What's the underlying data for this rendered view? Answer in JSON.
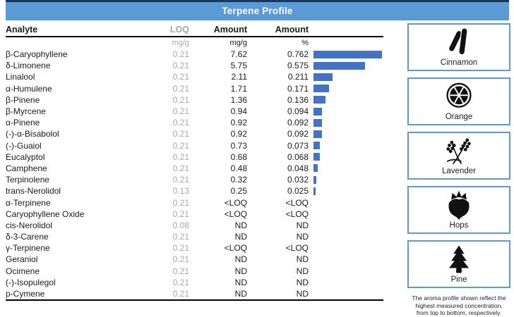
{
  "header": {
    "title": "Terpene Profile"
  },
  "table": {
    "columns": {
      "analyte": "Analyte",
      "loq": "LOQ",
      "amount_mg": "Amount",
      "amount_pct": "Amount"
    },
    "units": {
      "loq": "mg/g",
      "amount_mg": "mg/g",
      "amount_pct": "%"
    },
    "rows": [
      {
        "analyte": "β-Caryophyllene",
        "loq": "0.21",
        "amount_mg": "7.62",
        "amount_pct": "0.762",
        "bar": 7.62
      },
      {
        "analyte": "δ-Limonene",
        "loq": "0.21",
        "amount_mg": "5.75",
        "amount_pct": "0.575",
        "bar": 5.75
      },
      {
        "analyte": "Linalool",
        "loq": "0.21",
        "amount_mg": "2.11",
        "amount_pct": "0.211",
        "bar": 2.11
      },
      {
        "analyte": "α-Humulene",
        "loq": "0.21",
        "amount_mg": "1.71",
        "amount_pct": "0.171",
        "bar": 1.71
      },
      {
        "analyte": "β-Pinene",
        "loq": "0.21",
        "amount_mg": "1.36",
        "amount_pct": "0.136",
        "bar": 1.36
      },
      {
        "analyte": "β-Myrcene",
        "loq": "0.21",
        "amount_mg": "0.94",
        "amount_pct": "0.094",
        "bar": 0.94
      },
      {
        "analyte": "α-Pinene",
        "loq": "0.21",
        "amount_mg": "0.92",
        "amount_pct": "0.092",
        "bar": 0.92
      },
      {
        "analyte": "(-)-α-Bisabolol",
        "loq": "0.21",
        "amount_mg": "0.92",
        "amount_pct": "0.092",
        "bar": 0.92
      },
      {
        "analyte": "(-)-Guaiol",
        "loq": "0.21",
        "amount_mg": "0.73",
        "amount_pct": "0.073",
        "bar": 0.73
      },
      {
        "analyte": "Eucalyptol",
        "loq": "0.21",
        "amount_mg": "0.68",
        "amount_pct": "0.068",
        "bar": 0.68
      },
      {
        "analyte": "Camphene",
        "loq": "0.21",
        "amount_mg": "0.48",
        "amount_pct": "0.048",
        "bar": 0.48
      },
      {
        "analyte": "Terpinolene",
        "loq": "0.21",
        "amount_mg": "0.32",
        "amount_pct": "0.032",
        "bar": 0.32
      },
      {
        "analyte": "trans-Nerolidol",
        "loq": "0.13",
        "amount_mg": "0.25",
        "amount_pct": "0.025",
        "bar": 0.25
      },
      {
        "analyte": "α-Terpinene",
        "loq": "0.21",
        "amount_mg": "<LOQ",
        "amount_pct": "<LOQ",
        "bar": 0
      },
      {
        "analyte": "Caryophyllene Oxide",
        "loq": "0.21",
        "amount_mg": "<LOQ",
        "amount_pct": "<LOQ",
        "bar": 0
      },
      {
        "analyte": "cis-Nerolidol",
        "loq": "0.08",
        "amount_mg": "ND",
        "amount_pct": "ND",
        "bar": 0
      },
      {
        "analyte": "δ-3-Carene",
        "loq": "0.21",
        "amount_mg": "ND",
        "amount_pct": "ND",
        "bar": 0
      },
      {
        "analyte": "γ-Terpinene",
        "loq": "0.21",
        "amount_mg": "<LOQ",
        "amount_pct": "<LOQ",
        "bar": 0
      },
      {
        "analyte": "Geraniol",
        "loq": "0.21",
        "amount_mg": "ND",
        "amount_pct": "ND",
        "bar": 0
      },
      {
        "analyte": "Ocimene",
        "loq": "0.21",
        "amount_mg": "ND",
        "amount_pct": "ND",
        "bar": 0
      },
      {
        "analyte": "(-)-Isopulegol",
        "loq": "0.21",
        "amount_mg": "ND",
        "amount_pct": "ND",
        "bar": 0
      },
      {
        "analyte": "p-Cymene",
        "loq": "0.21",
        "amount_mg": "ND",
        "amount_pct": "ND",
        "bar": 0
      }
    ]
  },
  "aromas": [
    {
      "label": "Cinnamon",
      "icon": "cinnamon-icon"
    },
    {
      "label": "Orange",
      "icon": "orange-icon"
    },
    {
      "label": "Lavender",
      "icon": "lavender-icon"
    },
    {
      "label": "Hops",
      "icon": "hops-icon"
    },
    {
      "label": "Pine",
      "icon": "pine-icon"
    }
  ],
  "note_lines": [
    "The aroma profile shown reflect the",
    "highest measured concentration,",
    "from top to bottom, respectively."
  ],
  "colors": {
    "header_bg": "#5B9BD5",
    "header_top_border": "#17375E",
    "bar": "#4472C4",
    "muted_text": "#A8A8A8",
    "box_border": "#5B9BD5"
  },
  "chart_data": {
    "type": "bar",
    "orientation": "horizontal",
    "title": "Terpene Profile",
    "xlabel": "Amount (mg/g)",
    "xlim": [
      0,
      7.7
    ],
    "categories": [
      "β-Caryophyllene",
      "δ-Limonene",
      "Linalool",
      "α-Humulene",
      "β-Pinene",
      "β-Myrcene",
      "α-Pinene",
      "(-)-α-Bisabolol",
      "(-)-Guaiol",
      "Eucalyptol",
      "Camphene",
      "Terpinolene",
      "trans-Nerolidol",
      "α-Terpinene",
      "Caryophyllene Oxide",
      "cis-Nerolidol",
      "δ-3-Carene",
      "γ-Terpinene",
      "Geraniol",
      "Ocimene",
      "(-)-Isopulegol",
      "p-Cymene"
    ],
    "values": [
      7.62,
      5.75,
      2.11,
      1.71,
      1.36,
      0.94,
      0.92,
      0.92,
      0.73,
      0.68,
      0.48,
      0.32,
      0.25,
      0,
      0,
      0,
      0,
      0,
      0,
      0,
      0,
      0
    ]
  }
}
